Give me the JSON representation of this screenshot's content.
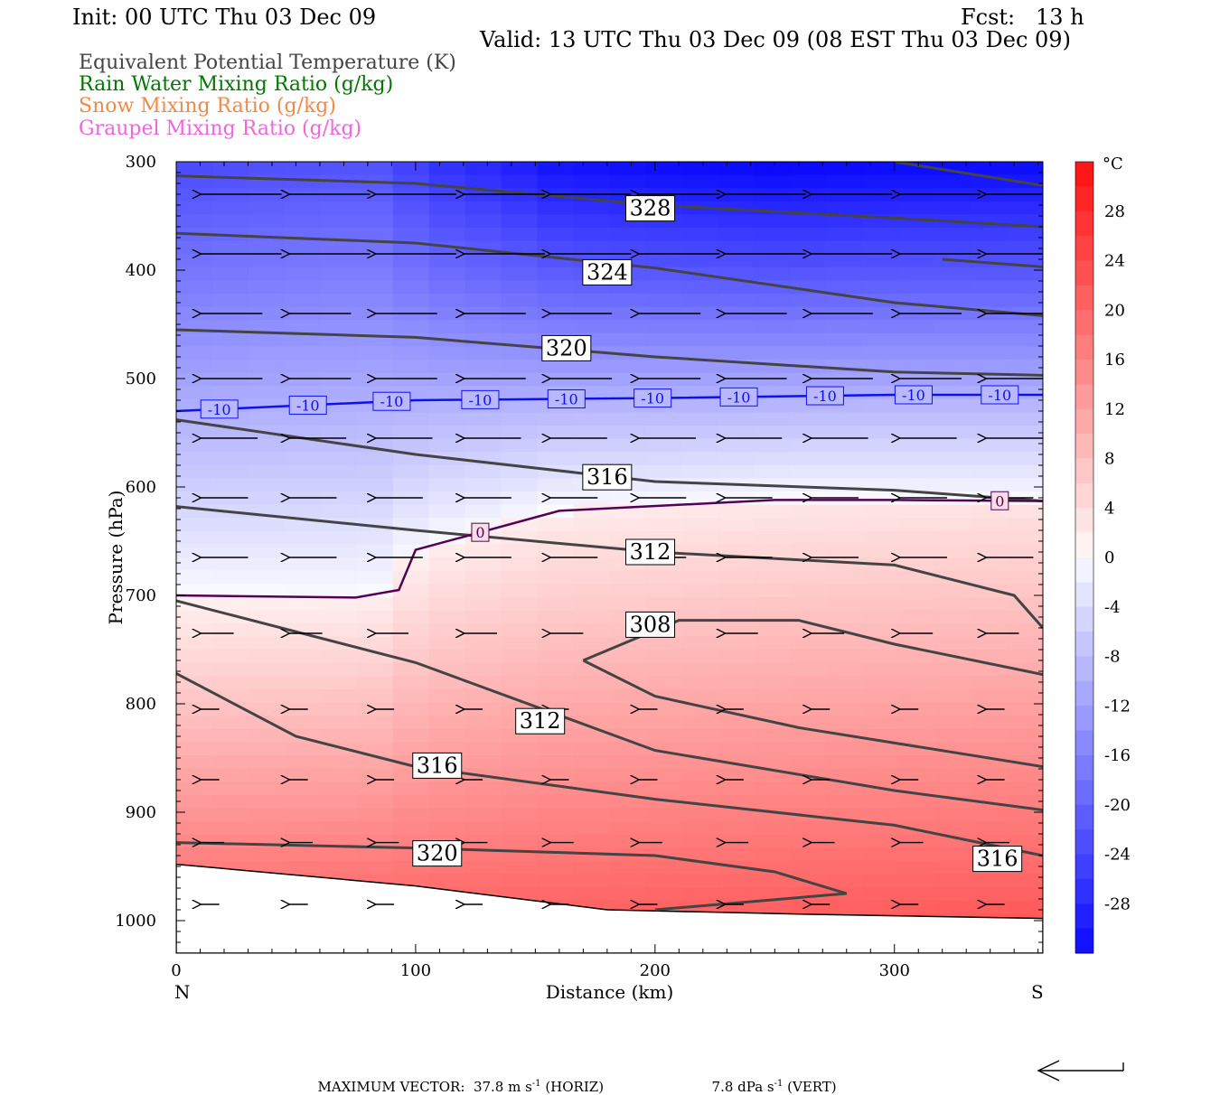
{
  "header": {
    "init": "Init: 00 UTC Thu 03 Dec 09",
    "fcst": "Fcst:   13 h",
    "valid": "Valid: 13 UTC Thu 03 Dec 09 (08 EST Thu 03 Dec 09)"
  },
  "legend": [
    {
      "label": "Equivalent Potential Temperature (K)",
      "color": "#444444"
    },
    {
      "label": "Rain Water Mixing Ratio (g/kg)",
      "color": "#007700"
    },
    {
      "label": "Snow Mixing Ratio (g/kg)",
      "color": "#f08a4b"
    },
    {
      "label": "Graupel Mixing Ratio (g/kg)",
      "color": "#ee66dd"
    }
  ],
  "footer": {
    "max_vector_label": "MAXIMUM VECTOR:",
    "horiz_value": "37.8 m s",
    "horiz_unit": "(HORIZ)",
    "vert_value": "7.8 dPa s",
    "vert_unit": "(VERT)",
    "exponent": "-1"
  },
  "chart_data": {
    "type": "contour",
    "xlabel": "Distance (km)",
    "ylabel": "Pressure (hPa)",
    "xlim": [
      0,
      362
    ],
    "ylim": [
      1030,
      300
    ],
    "x_ticks": [
      0,
      100,
      200,
      300
    ],
    "y_ticks": [
      300,
      400,
      500,
      600,
      700,
      800,
      900,
      1000
    ],
    "x_end_labels": {
      "left": "N",
      "right": "S"
    },
    "colorbar": {
      "unit": "°C",
      "ticks": [
        28,
        24,
        20,
        16,
        12,
        8,
        4,
        0,
        -4,
        -8,
        -12,
        -16,
        -20,
        -24,
        -28
      ],
      "range": [
        -32,
        32
      ]
    },
    "terrain": [
      [
        0,
        948
      ],
      [
        100,
        968
      ],
      [
        180,
        990
      ],
      [
        260,
        994
      ],
      [
        362,
        998
      ]
    ],
    "theta_e_contours": [
      {
        "label": "328",
        "label_pos": [
          198,
          343
        ],
        "points": [
          [
            0,
            313
          ],
          [
            100,
            320
          ],
          [
            200,
            340
          ],
          [
            300,
            352
          ],
          [
            362,
            360
          ]
        ]
      },
      {
        "label": "328",
        "label_pos": null,
        "points": [
          [
            300,
            300
          ],
          [
            362,
            322
          ]
        ]
      },
      {
        "label": "324",
        "label_pos": [
          180,
          402
        ],
        "points": [
          [
            0,
            366
          ],
          [
            100,
            375
          ],
          [
            200,
            398
          ],
          [
            300,
            430
          ],
          [
            362,
            442
          ]
        ]
      },
      {
        "label": "324",
        "label_pos": null,
        "points": [
          [
            320,
            390
          ],
          [
            362,
            397
          ]
        ]
      },
      {
        "label": "320",
        "label_pos": [
          163,
          472
        ],
        "points": [
          [
            0,
            455
          ],
          [
            100,
            462
          ],
          [
            200,
            480
          ],
          [
            300,
            494
          ],
          [
            362,
            497
          ]
        ]
      },
      {
        "label": "316",
        "label_pos": [
          180,
          591
        ],
        "points": [
          [
            0,
            538
          ],
          [
            100,
            570
          ],
          [
            200,
            595
          ],
          [
            300,
            603
          ],
          [
            362,
            613
          ]
        ]
      },
      {
        "label": "312",
        "label_pos": [
          198,
          660
        ],
        "points": [
          [
            0,
            618
          ],
          [
            100,
            640
          ],
          [
            200,
            660
          ],
          [
            300,
            672
          ],
          [
            350,
            700
          ],
          [
            362,
            730
          ]
        ]
      },
      {
        "label": "308",
        "label_pos": [
          198,
          727
        ],
        "points": [
          [
            170,
            760
          ],
          [
            210,
            723
          ],
          [
            260,
            723
          ],
          [
            300,
            745
          ],
          [
            362,
            773
          ]
        ]
      },
      {
        "label": "308",
        "label_pos": null,
        "points": [
          [
            170,
            760
          ],
          [
            200,
            793
          ],
          [
            260,
            822
          ],
          [
            362,
            858
          ]
        ]
      },
      {
        "label": "312",
        "label_pos": [
          152,
          816
        ],
        "points": [
          [
            0,
            705
          ],
          [
            100,
            762
          ],
          [
            200,
            843
          ],
          [
            300,
            880
          ],
          [
            362,
            898
          ]
        ]
      },
      {
        "label": "316",
        "label_pos": [
          109,
          857
        ],
        "points": [
          [
            0,
            772
          ],
          [
            50,
            830
          ],
          [
            100,
            858
          ],
          [
            200,
            888
          ],
          [
            300,
            912
          ],
          [
            362,
            940
          ]
        ]
      },
      {
        "label": "316",
        "label_pos": [
          343,
          943
        ],
        "points": []
      },
      {
        "label": "320",
        "label_pos": [
          109,
          938
        ],
        "points": [
          [
            0,
            928
          ],
          [
            100,
            933
          ],
          [
            200,
            940
          ],
          [
            250,
            955
          ],
          [
            280,
            975
          ],
          [
            200,
            990
          ]
        ]
      }
    ],
    "isotherms": [
      {
        "label": "-10",
        "color": "#1010ee",
        "points": [
          [
            0,
            530
          ],
          [
            100,
            520
          ],
          [
            200,
            518
          ],
          [
            300,
            515
          ],
          [
            362,
            515
          ]
        ],
        "label_x": [
          18,
          55,
          90,
          127,
          163,
          199,
          235,
          271,
          308,
          344
        ]
      },
      {
        "label": "0",
        "color": "#550055",
        "points": [
          [
            0,
            700
          ],
          [
            75,
            702
          ],
          [
            93,
            695
          ],
          [
            100,
            658
          ],
          [
            160,
            622
          ],
          [
            250,
            612
          ],
          [
            300,
            612
          ],
          [
            362,
            613
          ]
        ],
        "label_x": [
          127,
          344
        ]
      }
    ],
    "wind_vectors": {
      "rows": [
        {
          "p": 330,
          "len": 34
        },
        {
          "p": 385,
          "len": 34
        },
        {
          "p": 440,
          "len": 26
        },
        {
          "p": 500,
          "len": 26
        },
        {
          "p": 555,
          "len": 24
        },
        {
          "p": 610,
          "len": 20
        },
        {
          "p": 665,
          "len": 20
        },
        {
          "p": 735,
          "len": 14
        },
        {
          "p": 805,
          "len": 8
        },
        {
          "p": 870,
          "len": 8
        },
        {
          "p": 928,
          "len": 10
        },
        {
          "p": 985,
          "len": 8
        }
      ],
      "x_positions": [
        10,
        47,
        83,
        120,
        156,
        193,
        229,
        265,
        302,
        338
      ]
    }
  }
}
